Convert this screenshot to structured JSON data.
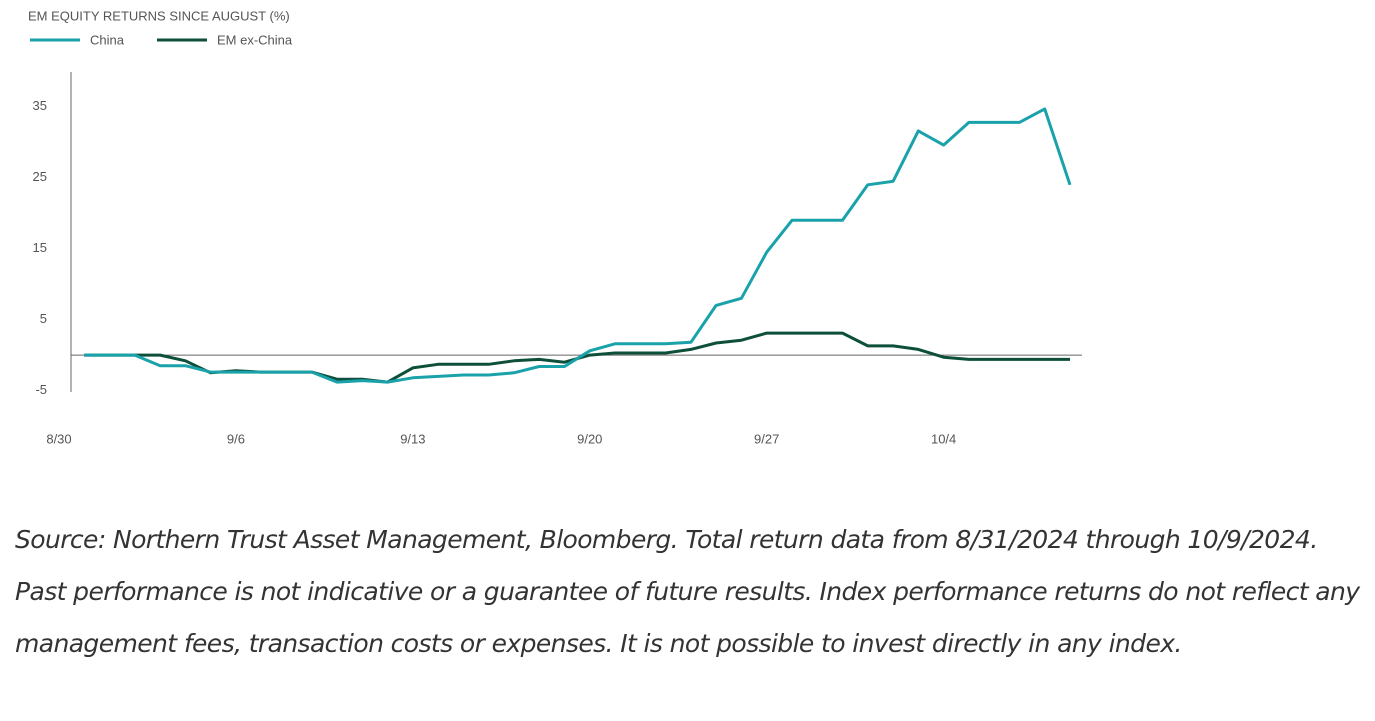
{
  "chart_data": {
    "type": "line",
    "title": "EM EQUITY RETURNS SINCE AUGUST (%)",
    "categories": [
      "8/30",
      null,
      null,
      null,
      null,
      null,
      null,
      "9/6",
      null,
      null,
      null,
      null,
      null,
      null,
      "9/13",
      null,
      null,
      null,
      null,
      null,
      null,
      "9/20",
      null,
      null,
      null,
      null,
      null,
      null,
      "9/27",
      null,
      null,
      null,
      null,
      null,
      null,
      "10/4",
      null,
      null,
      null,
      null,
      null
    ],
    "series": [
      {
        "name": "China",
        "color": "#1aa2ab",
        "values": [
          null,
          0,
          0,
          0,
          -1.5,
          -1.5,
          -2.4,
          -2.4,
          -2.4,
          -2.4,
          -2.4,
          -3.8,
          -3.6,
          -3.8,
          -3.2,
          -3,
          -2.8,
          -2.8,
          -2.5,
          -1.6,
          -1.6,
          0.6,
          1.6,
          1.6,
          1.6,
          1.8,
          7,
          8,
          14.5,
          19,
          19,
          19,
          24,
          24.5,
          31.6,
          29.6,
          32.8,
          32.8,
          32.8,
          34.7,
          24
        ]
      },
      {
        "name": "EM ex-China",
        "color": "#0e4f3c",
        "values": [
          null,
          0,
          0,
          0,
          0,
          -0.8,
          -2.5,
          -2.2,
          -2.4,
          -2.4,
          -2.4,
          -3.4,
          -3.4,
          -3.8,
          -1.8,
          -1.3,
          -1.3,
          -1.3,
          -0.8,
          -0.6,
          -1,
          0,
          0.3,
          0.3,
          0.3,
          0.8,
          1.7,
          2.1,
          3.1,
          3.1,
          3.1,
          3.1,
          1.3,
          1.3,
          0.8,
          -0.3,
          -0.6,
          -0.6,
          -0.6,
          -0.6,
          -0.6
        ]
      }
    ],
    "ylim": [
      -5.2,
      39.9
    ],
    "yticks": [
      -5,
      5,
      15,
      25,
      35
    ],
    "grid": false,
    "caption": "Source: Northern Trust Asset Management, Bloomberg. Total return data from 8/31/2024 through 10/9/2024. Past performance is not indicative or a guarantee of future results. Index performance returns do not reflect any management fees, transaction costs or expenses. It is not possible to invest directly in any index."
  }
}
